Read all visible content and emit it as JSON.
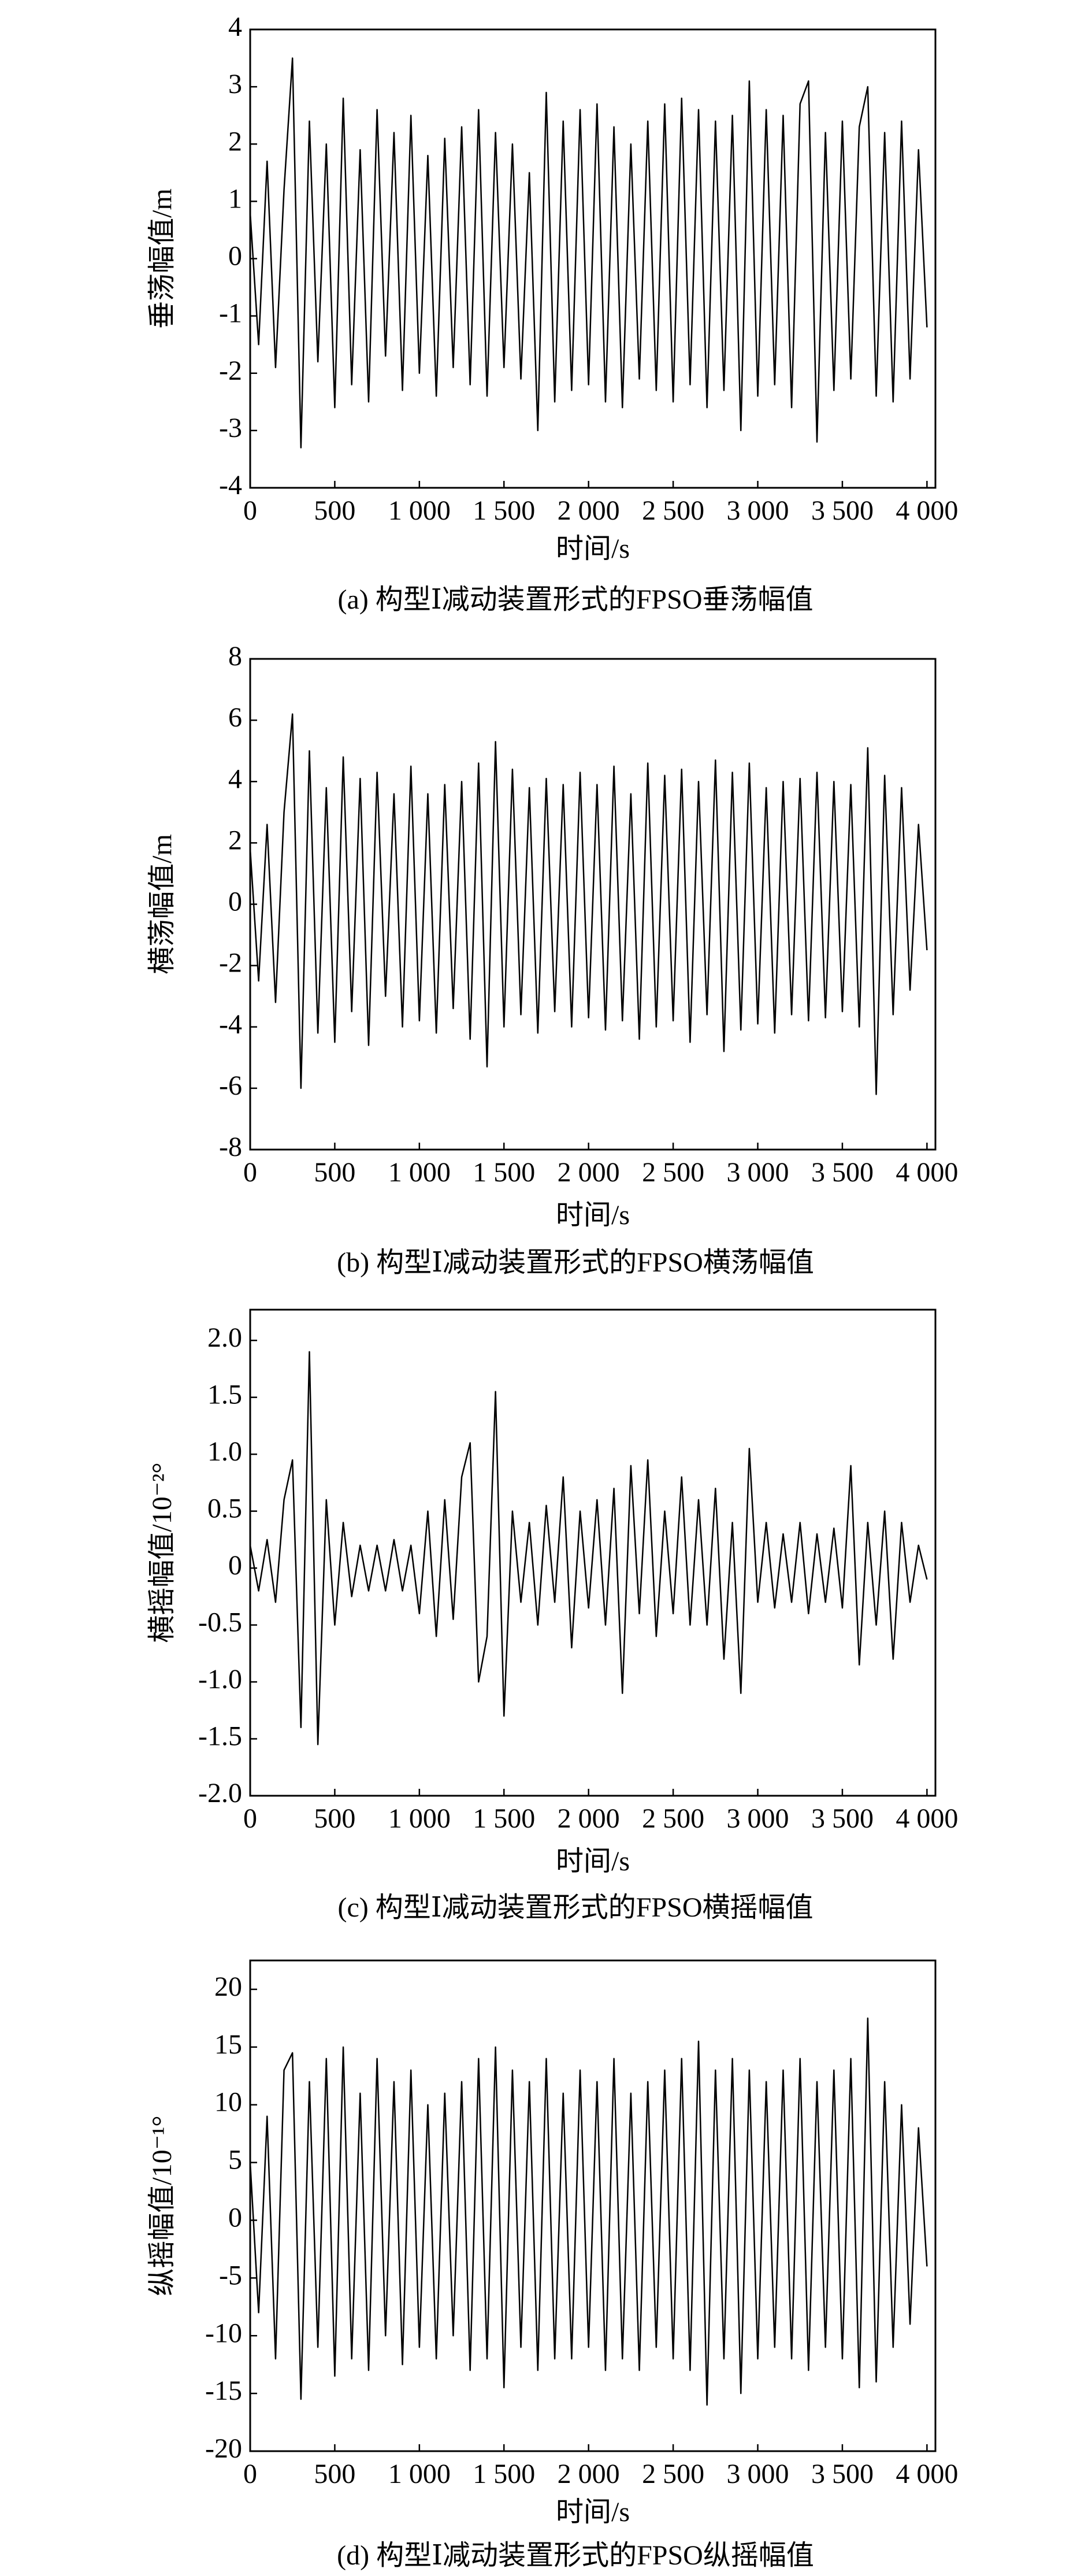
{
  "chart_data": [
    {
      "type": "line",
      "ylabel": "垂荡幅值/m",
      "xlabel": "时间/s",
      "caption": "(a) 构型Ⅰ减动装置形式的FPSO垂荡幅值",
      "color": "#000000",
      "x": [
        0,
        50,
        100,
        150,
        200,
        250,
        300,
        350,
        400,
        450,
        500,
        550,
        600,
        650,
        700,
        750,
        800,
        850,
        900,
        950,
        1000,
        1050,
        1100,
        1150,
        1200,
        1250,
        1300,
        1350,
        1400,
        1450,
        1500,
        1550,
        1600,
        1650,
        1700,
        1750,
        1800,
        1850,
        1900,
        1950,
        2000,
        2050,
        2100,
        2150,
        2200,
        2250,
        2300,
        2350,
        2400,
        2450,
        2500,
        2550,
        2600,
        2650,
        2700,
        2750,
        2800,
        2850,
        2900,
        2950,
        3000,
        3050,
        3100,
        3150,
        3200,
        3250,
        3300,
        3350,
        3400,
        3450,
        3500,
        3550,
        3600,
        3650,
        3700,
        3750,
        3800,
        3850,
        3900,
        3950,
        4000
      ],
      "values": [
        0.8,
        -1.5,
        1.7,
        -1.9,
        1.2,
        3.5,
        -3.3,
        2.4,
        -1.8,
        2.0,
        -2.6,
        2.8,
        -2.2,
        1.9,
        -2.5,
        2.6,
        -1.7,
        2.2,
        -2.3,
        2.5,
        -2.0,
        1.8,
        -2.4,
        2.1,
        -1.9,
        2.3,
        -2.2,
        2.6,
        -2.4,
        2.2,
        -1.9,
        2.0,
        -2.1,
        1.5,
        -3.0,
        2.9,
        -2.5,
        2.4,
        -2.3,
        2.6,
        -2.2,
        2.7,
        -2.5,
        2.3,
        -2.6,
        2.0,
        -2.1,
        2.4,
        -2.3,
        2.7,
        -2.5,
        2.8,
        -2.2,
        2.6,
        -2.6,
        2.4,
        -2.3,
        2.5,
        -3.0,
        3.1,
        -2.4,
        2.6,
        -2.2,
        2.5,
        -2.6,
        2.7,
        3.1,
        -3.2,
        2.2,
        -2.3,
        2.4,
        -2.1,
        2.3,
        3.0,
        -2.4,
        2.2,
        -2.5,
        2.4,
        -2.1,
        1.9,
        -1.2
      ],
      "xlim": [
        0,
        4050
      ],
      "xticks": [
        0,
        500,
        {
          "value": 1000,
          "label": "1 000"
        },
        {
          "value": 1500,
          "label": "1 500"
        },
        {
          "value": 2000,
          "label": "2 000"
        },
        {
          "value": 2500,
          "label": "2 500"
        },
        {
          "value": 3000,
          "label": "3 000"
        },
        {
          "value": 3500,
          "label": "3 500"
        },
        {
          "value": 4000,
          "label": "4 000"
        }
      ],
      "ylim": [
        -4,
        4
      ],
      "yticks": [
        -4,
        -3,
        -2,
        -1,
        0,
        1,
        2,
        3,
        4
      ]
    },
    {
      "type": "line",
      "ylabel": "横荡幅值/m",
      "xlabel": "时间/s",
      "caption": "(b) 构型Ⅰ减动装置形式的FPSO横荡幅值",
      "color": "#000000",
      "x": [
        0,
        50,
        100,
        150,
        200,
        250,
        300,
        350,
        400,
        450,
        500,
        550,
        600,
        650,
        700,
        750,
        800,
        850,
        900,
        950,
        1000,
        1050,
        1100,
        1150,
        1200,
        1250,
        1300,
        1350,
        1400,
        1450,
        1500,
        1550,
        1600,
        1650,
        1700,
        1750,
        1800,
        1850,
        1900,
        1950,
        2000,
        2050,
        2100,
        2150,
        2200,
        2250,
        2300,
        2350,
        2400,
        2450,
        2500,
        2550,
        2600,
        2650,
        2700,
        2750,
        2800,
        2850,
        2900,
        2950,
        3000,
        3050,
        3100,
        3150,
        3200,
        3250,
        3300,
        3350,
        3400,
        3450,
        3500,
        3550,
        3600,
        3650,
        3700,
        3750,
        3800,
        3850,
        3900,
        3950,
        4000
      ],
      "values": [
        1.8,
        -2.5,
        2.6,
        -3.2,
        3.0,
        6.2,
        -6.0,
        5.0,
        -4.2,
        3.8,
        -4.5,
        4.8,
        -3.5,
        4.1,
        -4.6,
        4.3,
        -3.0,
        3.6,
        -4.0,
        4.5,
        -3.8,
        3.6,
        -4.2,
        3.9,
        -3.4,
        4.0,
        -4.4,
        4.6,
        -5.3,
        5.3,
        -4.0,
        4.4,
        -3.6,
        3.8,
        -4.2,
        4.1,
        -3.5,
        3.9,
        -4.0,
        4.3,
        -3.7,
        3.9,
        -4.1,
        4.5,
        -3.8,
        3.6,
        -4.4,
        4.6,
        -4.0,
        4.2,
        -3.8,
        4.4,
        -4.5,
        4.0,
        -3.6,
        4.7,
        -4.8,
        4.3,
        -4.1,
        4.6,
        -3.9,
        3.8,
        -4.2,
        4.0,
        -3.6,
        4.1,
        -3.8,
        4.3,
        -3.7,
        4.0,
        -3.5,
        3.9,
        -4.0,
        5.1,
        -6.2,
        4.2,
        -3.6,
        3.8,
        -2.8,
        2.6,
        -1.5
      ],
      "xlim": [
        0,
        4050
      ],
      "xticks": [
        0,
        500,
        {
          "value": 1000,
          "label": "1 000"
        },
        {
          "value": 1500,
          "label": "1 500"
        },
        {
          "value": 2000,
          "label": "2 000"
        },
        {
          "value": 2500,
          "label": "2 500"
        },
        {
          "value": 3000,
          "label": "3 000"
        },
        {
          "value": 3500,
          "label": "3 500"
        },
        {
          "value": 4000,
          "label": "4 000"
        }
      ],
      "ylim": [
        -8,
        8
      ],
      "yticks": [
        -8,
        -6,
        -4,
        -2,
        0,
        2,
        4,
        6,
        8
      ]
    },
    {
      "type": "line",
      "ylabel": "横摇幅值/10⁻²°",
      "xlabel": "时间/s",
      "caption": "(c) 构型Ⅰ减动装置形式的FPSO横摇幅值",
      "color": "#000000",
      "x": [
        0,
        50,
        100,
        150,
        200,
        250,
        300,
        350,
        400,
        450,
        500,
        550,
        600,
        650,
        700,
        750,
        800,
        850,
        900,
        950,
        1000,
        1050,
        1100,
        1150,
        1200,
        1250,
        1300,
        1350,
        1400,
        1450,
        1500,
        1550,
        1600,
        1650,
        1700,
        1750,
        1800,
        1850,
        1900,
        1950,
        2000,
        2050,
        2100,
        2150,
        2200,
        2250,
        2300,
        2350,
        2400,
        2450,
        2500,
        2550,
        2600,
        2650,
        2700,
        2750,
        2800,
        2850,
        2900,
        2950,
        3000,
        3050,
        3100,
        3150,
        3200,
        3250,
        3300,
        3350,
        3400,
        3450,
        3500,
        3550,
        3600,
        3650,
        3700,
        3750,
        3800,
        3850,
        3900,
        3950,
        4000
      ],
      "values": [
        0.2,
        -0.2,
        0.25,
        -0.3,
        0.6,
        0.95,
        -1.4,
        1.9,
        -1.55,
        0.6,
        -0.5,
        0.4,
        -0.25,
        0.2,
        -0.2,
        0.2,
        -0.2,
        0.25,
        -0.2,
        0.2,
        -0.4,
        0.5,
        -0.6,
        0.6,
        -0.45,
        0.8,
        1.1,
        -1.0,
        -0.6,
        1.55,
        -1.3,
        0.5,
        -0.3,
        0.4,
        -0.5,
        0.55,
        -0.3,
        0.8,
        -0.7,
        0.5,
        -0.35,
        0.6,
        -0.5,
        0.7,
        -1.1,
        0.9,
        -0.4,
        0.95,
        -0.6,
        0.5,
        -0.4,
        0.8,
        -0.5,
        0.6,
        -0.5,
        0.7,
        -0.8,
        0.4,
        -1.1,
        1.05,
        -0.3,
        0.4,
        -0.35,
        0.3,
        -0.3,
        0.4,
        -0.4,
        0.3,
        -0.3,
        0.35,
        -0.35,
        0.9,
        -0.85,
        0.4,
        -0.5,
        0.5,
        -0.8,
        0.4,
        -0.3,
        0.2,
        -0.1
      ],
      "xlim": [
        0,
        4050
      ],
      "xticks": [
        0,
        500,
        {
          "value": 1000,
          "label": "1 000"
        },
        {
          "value": 1500,
          "label": "1 500"
        },
        {
          "value": 2000,
          "label": "2 000"
        },
        {
          "value": 2500,
          "label": "2 500"
        },
        {
          "value": 3000,
          "label": "3 000"
        },
        {
          "value": 3500,
          "label": "3 500"
        },
        {
          "value": 4000,
          "label": "4 000"
        }
      ],
      "ylim": [
        -2,
        2.27
      ],
      "yticks": [
        {
          "value": -2,
          "label": "-2.0"
        },
        -1.5,
        {
          "value": -1,
          "label": "-1.0"
        },
        -0.5,
        0,
        0.5,
        {
          "value": 1,
          "label": "1.0"
        },
        1.5,
        {
          "value": 2,
          "label": "2.0"
        }
      ]
    },
    {
      "type": "line",
      "ylabel": "纵摇幅值/10⁻¹°",
      "xlabel": "时间/s",
      "caption": "(d) 构型Ⅰ减动装置形式的FPSO纵摇幅值",
      "color": "#000000",
      "x": [
        0,
        50,
        100,
        150,
        200,
        250,
        300,
        350,
        400,
        450,
        500,
        550,
        600,
        650,
        700,
        750,
        800,
        850,
        900,
        950,
        1000,
        1050,
        1100,
        1150,
        1200,
        1250,
        1300,
        1350,
        1400,
        1450,
        1500,
        1550,
        1600,
        1650,
        1700,
        1750,
        1800,
        1850,
        1900,
        1950,
        2000,
        2050,
        2100,
        2150,
        2200,
        2250,
        2300,
        2350,
        2400,
        2450,
        2500,
        2550,
        2600,
        2650,
        2700,
        2750,
        2800,
        2850,
        2900,
        2950,
        3000,
        3050,
        3100,
        3150,
        3200,
        3250,
        3300,
        3350,
        3400,
        3450,
        3500,
        3550,
        3600,
        3650,
        3700,
        3750,
        3800,
        3850,
        3900,
        3950,
        4000
      ],
      "values": [
        5,
        -8,
        9,
        -12,
        13,
        14.5,
        -15.5,
        12,
        -11,
        14,
        -13.5,
        15,
        -12,
        11,
        -13,
        14,
        -10,
        12,
        -12.5,
        13,
        -11,
        10,
        -12,
        11,
        -10,
        12,
        -13,
        14,
        -12,
        15,
        -14.5,
        13,
        -11,
        12,
        -13,
        14,
        -12,
        11,
        -12,
        13,
        -11,
        12,
        -13,
        14,
        -12,
        11,
        -13,
        12,
        -11,
        13,
        -12,
        14,
        -13,
        15.5,
        -16,
        13,
        -12,
        14,
        -15,
        13,
        -12,
        12,
        -11,
        13,
        -12,
        14,
        -13,
        12,
        -11,
        13,
        -12,
        14,
        -14.5,
        17.5,
        -14,
        12,
        -11,
        10,
        -9,
        8,
        -4
      ],
      "xlim": [
        0,
        4050
      ],
      "xticks": [
        0,
        500,
        {
          "value": 1000,
          "label": "1 000"
        },
        {
          "value": 1500,
          "label": "1 500"
        },
        {
          "value": 2000,
          "label": "2 000"
        },
        {
          "value": 2500,
          "label": "2 500"
        },
        {
          "value": 3000,
          "label": "3 000"
        },
        {
          "value": 3500,
          "label": "3 500"
        },
        {
          "value": 4000,
          "label": "4 000"
        }
      ],
      "ylim": [
        -20,
        22.5
      ],
      "yticks": [
        -20,
        -15,
        -10,
        -5,
        0,
        5,
        10,
        15,
        20
      ]
    }
  ]
}
